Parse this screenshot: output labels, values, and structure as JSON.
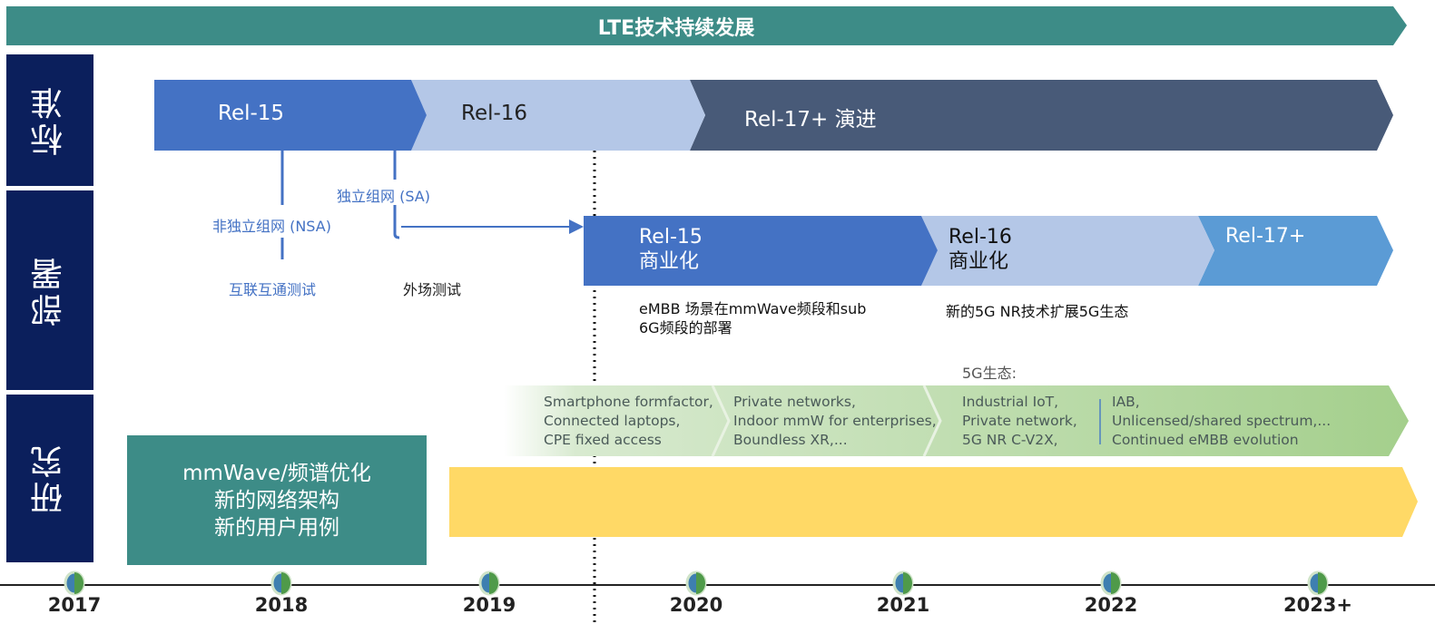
{
  "banner": {
    "title": "LTE技术持续发展"
  },
  "rows": {
    "standard": "标准",
    "deploy": "部署",
    "research": "研究"
  },
  "standards": [
    {
      "label": "Rel-15"
    },
    {
      "label": "Rel-16"
    },
    {
      "label": "Rel-17+ 演进"
    }
  ],
  "branches": {
    "nsa": "非独立组网 (NSA)",
    "sa": "独立组网 (SA)",
    "interop": "互联互通测试",
    "field": "外场测试"
  },
  "deployment": [
    {
      "label": "Rel-15",
      "sub": "商业化"
    },
    {
      "label": "Rel-16",
      "sub": "商业化"
    },
    {
      "label": "Rel-17+"
    }
  ],
  "deploy_notes": {
    "embb_1": "eMBB 场景在mmWave频段和sub",
    "embb_2": "6G频段的部署",
    "nr": "新的5G NR技术扩展5G生态"
  },
  "ecosystem": {
    "title": "5G生态:",
    "groups": [
      [
        "Smartphone formfactor,",
        "Connected laptops,",
        "CPE fixed access"
      ],
      [
        "Private networks,",
        "Indoor mmW for enterprises,",
        "Boundless XR,..."
      ],
      [
        "Industrial IoT,",
        "Private network,",
        "5G NR C-V2X,"
      ],
      [
        "IAB,",
        "Unlicensed/shared spectrum,...",
        "Continued eMBB evolution"
      ]
    ]
  },
  "research": {
    "lines": [
      "mmWave/频谱优化",
      "新的网络架构",
      "新的用户用例"
    ]
  },
  "timeline": {
    "years": [
      "2017",
      "2018",
      "2019",
      "2020",
      "2021",
      "2022",
      "2023+"
    ]
  },
  "colors": {
    "teal": "#3d8c87",
    "navy": "#0b1f5c",
    "rel15": "#4472c4",
    "rel16": "#b4c7e7",
    "rel17": "#485a78",
    "rel17deploy": "#5b9bd5",
    "yellow": "#ffd966",
    "green": "#a9d18e"
  }
}
